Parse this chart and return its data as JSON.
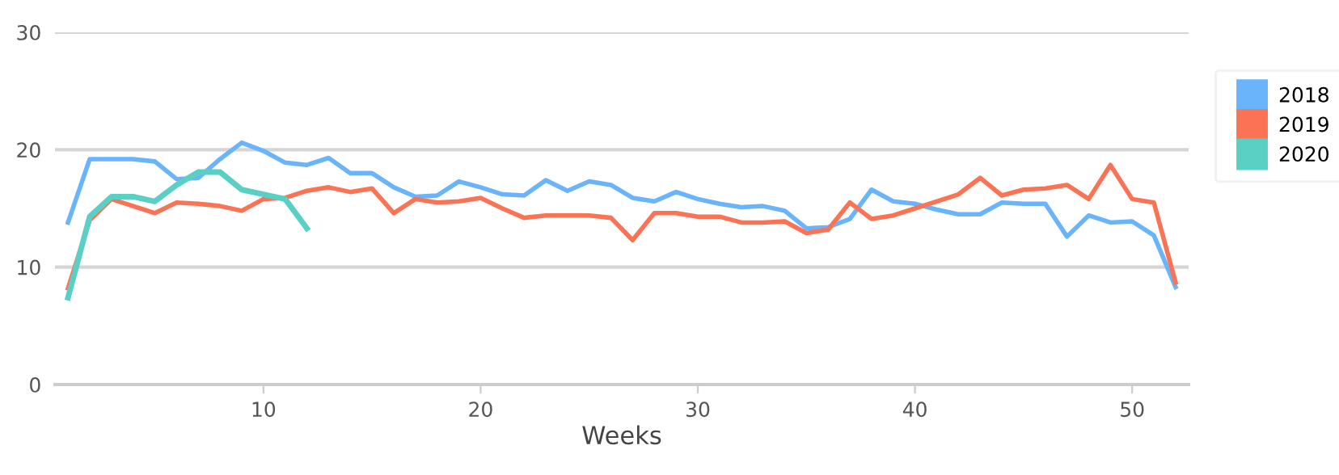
{
  "chart_data": {
    "type": "line",
    "xlabel": "Weeks",
    "x": [
      1,
      2,
      3,
      4,
      5,
      6,
      7,
      8,
      9,
      10,
      11,
      12,
      13,
      14,
      15,
      16,
      17,
      18,
      19,
      20,
      21,
      22,
      23,
      24,
      25,
      26,
      27,
      28,
      29,
      30,
      31,
      32,
      33,
      34,
      35,
      36,
      37,
      38,
      39,
      40,
      41,
      42,
      43,
      44,
      45,
      46,
      47,
      48,
      49,
      50,
      51,
      52
    ],
    "series": [
      {
        "name": "2018",
        "color": "#6ab4fb",
        "values": [
          13.8,
          19.2,
          19.2,
          19.2,
          19.0,
          17.5,
          17.6,
          19.2,
          20.6,
          19.9,
          18.9,
          18.7,
          19.3,
          18.0,
          18.0,
          16.8,
          16.0,
          16.1,
          17.3,
          16.8,
          16.2,
          16.1,
          17.4,
          16.5,
          17.3,
          17.0,
          15.9,
          15.6,
          16.4,
          15.8,
          15.4,
          15.1,
          15.2,
          14.8,
          13.3,
          13.4,
          14.1,
          16.6,
          15.6,
          15.4,
          14.9,
          14.5,
          14.5,
          15.5,
          15.4,
          15.4,
          12.6,
          14.4,
          13.8,
          13.9,
          12.7,
          8.3
        ]
      },
      {
        "name": "2019",
        "color": "#fb7355",
        "values": [
          8.2,
          14.0,
          15.8,
          15.2,
          14.6,
          15.5,
          15.4,
          15.2,
          14.8,
          15.8,
          15.9,
          16.5,
          16.8,
          16.4,
          16.7,
          14.6,
          15.8,
          15.5,
          15.6,
          15.9,
          15.0,
          14.2,
          14.4,
          14.4,
          14.4,
          14.2,
          12.3,
          14.6,
          14.6,
          14.3,
          14.3,
          13.8,
          13.8,
          13.9,
          12.9,
          13.2,
          15.5,
          14.1,
          14.4,
          15.0,
          15.6,
          16.2,
          17.6,
          16.1,
          16.6,
          16.7,
          17.0,
          15.8,
          18.7,
          15.8,
          15.5,
          8.7
        ]
      },
      {
        "name": "2020",
        "color": "#5ad0c5",
        "values": [
          7.4,
          14.3,
          16.0,
          16.0,
          15.6,
          17.0,
          18.1,
          18.1,
          16.6,
          16.2,
          15.8,
          13.3,
          null,
          null,
          null,
          null,
          null,
          null,
          null,
          null,
          null,
          null,
          null,
          null,
          null,
          null,
          null,
          null,
          null,
          null,
          null,
          null,
          null,
          null,
          null,
          null,
          null,
          null,
          null,
          null,
          null,
          null,
          null,
          null,
          null,
          null,
          null,
          null,
          null,
          null,
          null,
          null
        ]
      }
    ],
    "xlim": [
      0.4,
      52.6
    ],
    "xticks": [
      10,
      20,
      30,
      40,
      50
    ],
    "ylim": [
      0,
      30
    ],
    "yticks": [
      0,
      10,
      20,
      30
    ],
    "grid": "y",
    "legend": "top right",
    "marker": "none",
    "line_style": "solid"
  }
}
